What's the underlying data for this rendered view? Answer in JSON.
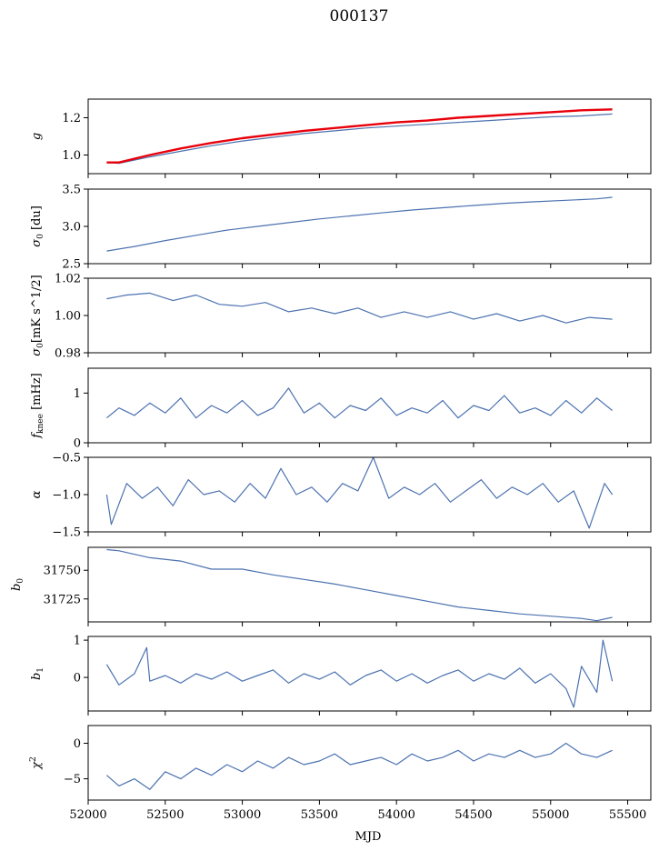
{
  "title": "000137",
  "xlabel": "MJD",
  "chart_data": [
    {
      "type": "line",
      "ylabel": "g",
      "xlim": [
        52000,
        55650
      ],
      "ylim": [
        0.9,
        1.3
      ],
      "yticks": [
        1.0,
        1.2
      ],
      "ytick_labels": [
        "1.0",
        "1.2"
      ],
      "x": [
        52120,
        52200,
        52400,
        52600,
        52800,
        53000,
        53200,
        53400,
        53600,
        53800,
        54000,
        54200,
        54400,
        54600,
        54800,
        55000,
        55200,
        55400
      ],
      "series": [
        {
          "color": "#4c72b0",
          "values": [
            0.96,
            0.955,
            0.99,
            1.02,
            1.05,
            1.075,
            1.095,
            1.115,
            1.13,
            1.145,
            1.155,
            1.165,
            1.175,
            1.185,
            1.195,
            1.205,
            1.21,
            1.22
          ]
        },
        {
          "color": "#e8000b",
          "values": [
            0.96,
            0.96,
            1.0,
            1.035,
            1.065,
            1.09,
            1.11,
            1.13,
            1.145,
            1.16,
            1.175,
            1.185,
            1.2,
            1.21,
            1.22,
            1.23,
            1.24,
            1.245
          ]
        }
      ]
    },
    {
      "type": "line",
      "ylabel": "σ0 [du]",
      "xlim": [
        52000,
        55650
      ],
      "ylim": [
        2.5,
        3.5
      ],
      "yticks": [
        2.5,
        3.0,
        3.5
      ],
      "ytick_labels": [
        "2.5",
        "3.0",
        "3.5"
      ],
      "x": [
        52120,
        52300,
        52500,
        52700,
        52900,
        53100,
        53300,
        53500,
        53700,
        53900,
        54100,
        54300,
        54500,
        54700,
        54900,
        55100,
        55300,
        55400
      ],
      "series": [
        {
          "color": "#4c72b0",
          "values": [
            2.67,
            2.73,
            2.81,
            2.88,
            2.95,
            3.0,
            3.05,
            3.1,
            3.14,
            3.18,
            3.22,
            3.25,
            3.28,
            3.31,
            3.33,
            3.35,
            3.37,
            3.39
          ]
        }
      ]
    },
    {
      "type": "line",
      "ylabel": "σ0[mK s^1/2]",
      "xlim": [
        52000,
        55650
      ],
      "ylim": [
        0.98,
        1.02
      ],
      "yticks": [
        0.98,
        1.0,
        1.02
      ],
      "ytick_labels": [
        "0.98",
        "1.00",
        "1.02"
      ],
      "x": [
        52120,
        52250,
        52400,
        52550,
        52700,
        52850,
        53000,
        53150,
        53300,
        53450,
        53600,
        53750,
        53900,
        54050,
        54200,
        54350,
        54500,
        54650,
        54800,
        54950,
        55100,
        55250,
        55400
      ],
      "series": [
        {
          "color": "#4c72b0",
          "values": [
            1.009,
            1.011,
            1.012,
            1.008,
            1.011,
            1.006,
            1.005,
            1.007,
            1.002,
            1.004,
            1.001,
            1.004,
            0.999,
            1.002,
            0.999,
            1.002,
            0.998,
            1.001,
            0.997,
            1.0,
            0.996,
            0.999,
            0.998
          ]
        }
      ]
    },
    {
      "type": "line",
      "ylabel": "fknee [mHz]",
      "xlim": [
        52000,
        55650
      ],
      "ylim": [
        0,
        1.5
      ],
      "yticks": [
        0,
        1
      ],
      "ytick_labels": [
        "0",
        "1"
      ],
      "x": [
        52120,
        52200,
        52300,
        52400,
        52500,
        52600,
        52700,
        52800,
        52900,
        53000,
        53100,
        53200,
        53300,
        53400,
        53500,
        53600,
        53700,
        53800,
        53900,
        54000,
        54100,
        54200,
        54300,
        54400,
        54500,
        54600,
        54700,
        54800,
        54900,
        55000,
        55100,
        55200,
        55300,
        55400
      ],
      "series": [
        {
          "color": "#4c72b0",
          "values": [
            0.5,
            0.7,
            0.55,
            0.8,
            0.6,
            0.9,
            0.5,
            0.75,
            0.6,
            0.85,
            0.55,
            0.7,
            1.1,
            0.6,
            0.8,
            0.5,
            0.75,
            0.65,
            0.9,
            0.55,
            0.7,
            0.6,
            0.85,
            0.5,
            0.75,
            0.65,
            0.95,
            0.6,
            0.7,
            0.55,
            0.85,
            0.6,
            0.9,
            0.65
          ]
        }
      ]
    },
    {
      "type": "line",
      "ylabel": "α",
      "xlim": [
        52000,
        55650
      ],
      "ylim": [
        -1.5,
        -0.5
      ],
      "yticks": [
        -1.5,
        -1.0,
        -0.5
      ],
      "ytick_labels": [
        "−1.5",
        "−1.0",
        "−0.5"
      ],
      "x": [
        52120,
        52150,
        52250,
        52350,
        52450,
        52550,
        52650,
        52750,
        52850,
        52950,
        53050,
        53150,
        53250,
        53350,
        53450,
        53550,
        53650,
        53750,
        53850,
        53950,
        54050,
        54150,
        54250,
        54350,
        54450,
        54550,
        54650,
        54750,
        54850,
        54950,
        55050,
        55150,
        55250,
        55350,
        55400
      ],
      "series": [
        {
          "color": "#4c72b0",
          "values": [
            -1.0,
            -1.4,
            -0.85,
            -1.05,
            -0.9,
            -1.15,
            -0.8,
            -1.0,
            -0.95,
            -1.1,
            -0.85,
            -1.05,
            -0.65,
            -1.0,
            -0.9,
            -1.1,
            -0.85,
            -0.95,
            -0.5,
            -1.05,
            -0.9,
            -1.0,
            -0.85,
            -1.1,
            -0.95,
            -0.8,
            -1.05,
            -0.9,
            -1.0,
            -0.85,
            -1.1,
            -0.95,
            -1.45,
            -0.85,
            -1.0
          ]
        }
      ]
    },
    {
      "type": "line",
      "ylabel": "b0",
      "xlim": [
        52000,
        55650
      ],
      "ylim": [
        31705,
        31770
      ],
      "yticks": [
        31725,
        31750
      ],
      "ytick_labels": [
        "31725",
        "31750"
      ],
      "x": [
        52120,
        52200,
        52400,
        52600,
        52800,
        53000,
        53200,
        53400,
        53600,
        53800,
        54000,
        54200,
        54400,
        54600,
        54800,
        55000,
        55200,
        55300,
        55400
      ],
      "series": [
        {
          "color": "#4c72b0",
          "values": [
            31768,
            31767,
            31761,
            31758,
            31751,
            31751,
            31746,
            31742,
            31738,
            31733,
            31728,
            31723,
            31718,
            31715,
            31712,
            31710,
            31708,
            31706,
            31709
          ]
        }
      ]
    },
    {
      "type": "line",
      "ylabel": "b1",
      "xlim": [
        52000,
        55650
      ],
      "ylim": [
        -0.9,
        1.1
      ],
      "yticks": [
        0,
        1
      ],
      "ytick_labels": [
        "0",
        "1"
      ],
      "x": [
        52120,
        52200,
        52300,
        52380,
        52400,
        52500,
        52600,
        52700,
        52800,
        52900,
        53000,
        53100,
        53200,
        53300,
        53400,
        53500,
        53600,
        53700,
        53800,
        53900,
        54000,
        54100,
        54200,
        54300,
        54400,
        54500,
        54600,
        54700,
        54800,
        54900,
        55000,
        55100,
        55150,
        55200,
        55300,
        55340,
        55400
      ],
      "series": [
        {
          "color": "#4c72b0",
          "values": [
            0.35,
            -0.2,
            0.1,
            0.8,
            -0.1,
            0.05,
            -0.15,
            0.1,
            -0.05,
            0.15,
            -0.1,
            0.05,
            0.2,
            -0.15,
            0.1,
            -0.05,
            0.15,
            -0.2,
            0.05,
            0.2,
            -0.1,
            0.1,
            -0.15,
            0.05,
            0.2,
            -0.1,
            0.1,
            -0.05,
            0.25,
            -0.15,
            0.1,
            -0.3,
            -0.8,
            0.3,
            -0.4,
            1.0,
            -0.1
          ]
        }
      ]
    },
    {
      "type": "line",
      "ylabel": "χ²",
      "xlim": [
        52000,
        55650
      ],
      "ylim": [
        -8,
        2.5
      ],
      "yticks": [
        -5,
        0
      ],
      "ytick_labels": [
        "−5",
        "0"
      ],
      "x": [
        52120,
        52200,
        52300,
        52400,
        52500,
        52600,
        52700,
        52800,
        52900,
        53000,
        53100,
        53200,
        53300,
        53400,
        53500,
        53600,
        53700,
        53800,
        53900,
        54000,
        54100,
        54200,
        54300,
        54400,
        54500,
        54600,
        54700,
        54800,
        54900,
        55000,
        55100,
        55200,
        55300,
        55400
      ],
      "series": [
        {
          "color": "#4c72b0",
          "values": [
            -4.5,
            -6.0,
            -5.0,
            -6.5,
            -4.0,
            -5.0,
            -3.5,
            -4.5,
            -3.0,
            -4.0,
            -2.5,
            -3.5,
            -2.0,
            -3.0,
            -2.5,
            -1.5,
            -3.0,
            -2.5,
            -2.0,
            -3.0,
            -1.5,
            -2.5,
            -2.0,
            -1.0,
            -2.5,
            -1.5,
            -2.0,
            -1.0,
            -2.0,
            -1.5,
            0.0,
            -1.5,
            -2.0,
            -1.0
          ]
        }
      ]
    }
  ],
  "xaxis": {
    "ticks": [
      52000,
      52500,
      53000,
      53500,
      54000,
      54500,
      55000,
      55500
    ],
    "tick_labels": [
      "52000",
      "52500",
      "53000",
      "53500",
      "54000",
      "54500",
      "55000",
      "55500"
    ]
  }
}
